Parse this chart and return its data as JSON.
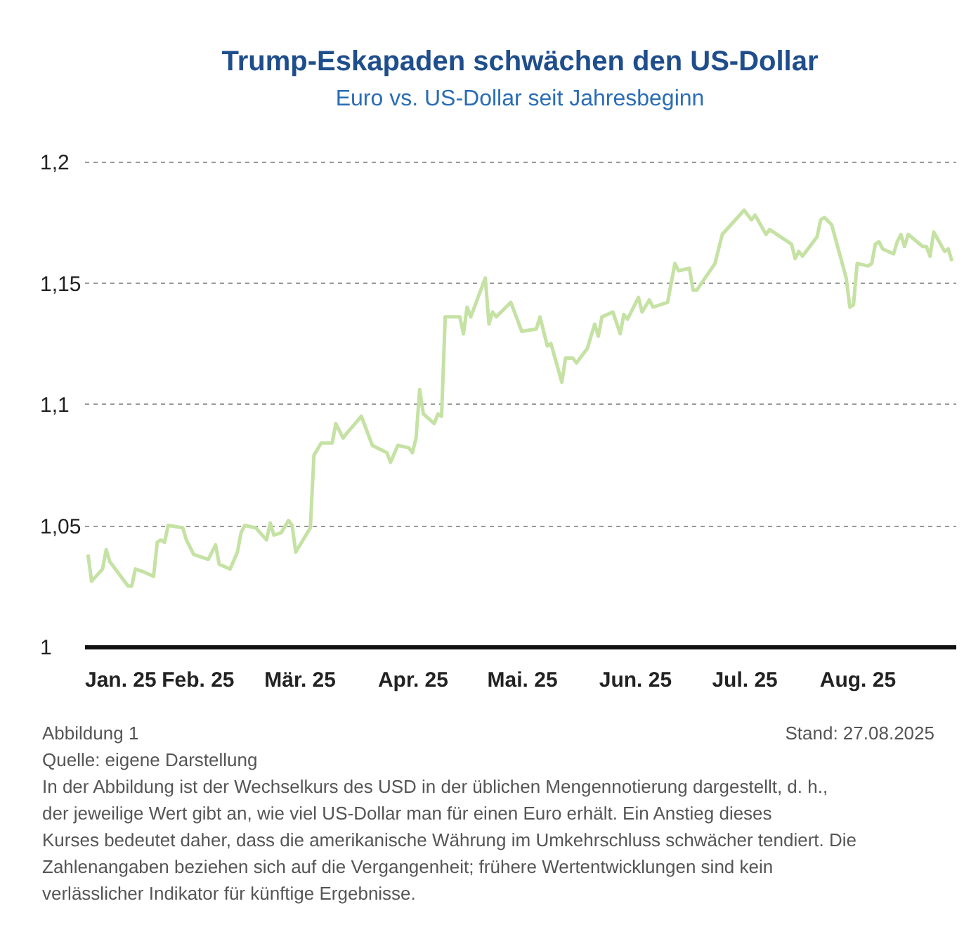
{
  "chart_data": {
    "type": "line",
    "title": "Trump-Eskapaden schwächen den US-Dollar",
    "subtitle": "Euro vs. US-Dollar seit Jahresbeginn",
    "x": [
      "2025-01-02",
      "2025-01-03",
      "2025-01-06",
      "2025-01-07",
      "2025-01-08",
      "2025-01-10",
      "2025-01-13",
      "2025-01-14",
      "2025-01-15",
      "2025-01-17",
      "2025-01-20",
      "2025-01-21",
      "2025-01-22",
      "2025-01-23",
      "2025-01-24",
      "2025-01-28",
      "2025-01-29",
      "2025-01-31",
      "2025-02-04",
      "2025-02-06",
      "2025-02-07",
      "2025-02-10",
      "2025-02-12",
      "2025-02-13",
      "2025-02-14",
      "2025-02-17",
      "2025-02-20",
      "2025-02-21",
      "2025-02-22",
      "2025-02-24",
      "2025-02-26",
      "2025-02-27",
      "2025-02-28",
      "2025-03-04",
      "2025-03-05",
      "2025-03-07",
      "2025-03-10",
      "2025-03-11",
      "2025-03-13",
      "2025-03-14",
      "2025-03-18",
      "2025-03-21",
      "2025-03-25",
      "2025-03-26",
      "2025-03-28",
      "2025-03-31",
      "2025-04-01",
      "2025-04-02",
      "2025-04-03",
      "2025-04-04",
      "2025-04-07",
      "2025-04-08",
      "2025-04-09",
      "2025-04-10",
      "2025-04-14",
      "2025-04-15",
      "2025-04-16",
      "2025-04-17",
      "2025-04-21",
      "2025-04-22",
      "2025-04-23",
      "2025-04-24",
      "2025-04-28",
      "2025-05-01",
      "2025-05-05",
      "2025-05-06",
      "2025-05-08",
      "2025-05-09",
      "2025-05-12",
      "2025-05-13",
      "2025-05-15",
      "2025-05-16",
      "2025-05-19",
      "2025-05-21",
      "2025-05-22",
      "2025-05-23",
      "2025-05-26",
      "2025-05-28",
      "2025-05-29",
      "2025-05-30",
      "2025-06-02",
      "2025-06-03",
      "2025-06-05",
      "2025-06-06",
      "2025-06-10",
      "2025-06-12",
      "2025-06-13",
      "2025-06-16",
      "2025-06-17",
      "2025-06-18",
      "2025-06-23",
      "2025-06-25",
      "2025-07-01",
      "2025-07-02",
      "2025-07-03",
      "2025-07-04",
      "2025-07-07",
      "2025-07-08",
      "2025-07-14",
      "2025-07-15",
      "2025-07-16",
      "2025-07-17",
      "2025-07-21",
      "2025-07-22",
      "2025-07-23",
      "2025-07-25",
      "2025-07-29",
      "2025-07-30",
      "2025-07-31",
      "2025-08-01",
      "2025-08-04",
      "2025-08-05",
      "2025-08-06",
      "2025-08-07",
      "2025-08-08",
      "2025-08-11",
      "2025-08-12",
      "2025-08-13",
      "2025-08-14",
      "2025-08-15",
      "2025-08-19",
      "2025-08-20",
      "2025-08-21",
      "2025-08-22",
      "2025-08-25",
      "2025-08-26",
      "2025-08-27"
    ],
    "series": [
      {
        "color": "#c5e2a4",
        "values": [
          1.038,
          1.027,
          1.032,
          1.04,
          1.035,
          1.031,
          1.025,
          1.025,
          1.032,
          1.031,
          1.029,
          1.043,
          1.044,
          1.043,
          1.05,
          1.049,
          1.044,
          1.038,
          1.036,
          1.042,
          1.034,
          1.032,
          1.039,
          1.047,
          1.05,
          1.049,
          1.044,
          1.051,
          1.046,
          1.047,
          1.052,
          1.05,
          1.039,
          1.049,
          1.079,
          1.084,
          1.084,
          1.092,
          1.086,
          1.088,
          1.095,
          1.083,
          1.08,
          1.076,
          1.083,
          1.082,
          1.08,
          1.086,
          1.106,
          1.096,
          1.092,
          1.096,
          1.095,
          1.136,
          1.136,
          1.129,
          1.14,
          1.136,
          1.152,
          1.133,
          1.138,
          1.136,
          1.142,
          1.13,
          1.131,
          1.136,
          1.124,
          1.125,
          1.109,
          1.119,
          1.119,
          1.117,
          1.123,
          1.133,
          1.128,
          1.136,
          1.138,
          1.129,
          1.137,
          1.135,
          1.144,
          1.138,
          1.143,
          1.14,
          1.142,
          1.158,
          1.155,
          1.156,
          1.147,
          1.147,
          1.158,
          1.17,
          1.18,
          1.178,
          1.176,
          1.178,
          1.17,
          1.172,
          1.166,
          1.16,
          1.163,
          1.161,
          1.169,
          1.176,
          1.177,
          1.174,
          1.152,
          1.14,
          1.141,
          1.158,
          1.157,
          1.158,
          1.166,
          1.167,
          1.164,
          1.162,
          1.167,
          1.17,
          1.165,
          1.17,
          1.165,
          1.165,
          1.161,
          1.171,
          1.163,
          1.164,
          1.159
        ]
      }
    ],
    "xlim": [
      "2025-01-01",
      "2025-08-28"
    ],
    "xticks": [
      {
        "value": "2025-01-01",
        "label": "Jan. 25"
      },
      {
        "value": "2025-02-01",
        "label": "Feb. 25"
      },
      {
        "value": "2025-03-01",
        "label": "Mär. 25"
      },
      {
        "value": "2025-04-01",
        "label": "Apr. 25"
      },
      {
        "value": "2025-05-01",
        "label": "Mai. 25"
      },
      {
        "value": "2025-06-01",
        "label": "Jun. 25"
      },
      {
        "value": "2025-07-01",
        "label": "Jul. 25"
      },
      {
        "value": "2025-08-01",
        "label": "Aug. 25"
      }
    ],
    "ylim": [
      1,
      1.2
    ],
    "yticks": [
      {
        "value": 1,
        "label": "1"
      },
      {
        "value": 1.05,
        "label": "1,05"
      },
      {
        "value": 1.1,
        "label": "1,1"
      },
      {
        "value": 1.15,
        "label": "1,15"
      },
      {
        "value": 1.2,
        "label": "1,2"
      }
    ],
    "grid": "y",
    "marker": "none",
    "line_style": "solid",
    "annotations": [
      "Abbildung 1",
      "Stand: 27.08.2025",
      "Quelle: eigene Darstellung",
      "In der Abbildung ist der Wechselkurs des USD in der üblichen Mengennotierung dargestellt, d. h., der jeweilige Wert gibt an, wie viel US-Dollar man für einen Euro erhält. Ein Anstieg dieses Kurses bedeutet daher, dass die amerikanische Währung im Umkehrschluss schwächer tendiert. Die Zahlenangaben beziehen sich auf die Vergangenheit; frühere Wertentwicklungen sind kein verlässlicher Indikator für künftige Ergebnisse."
    ]
  }
}
